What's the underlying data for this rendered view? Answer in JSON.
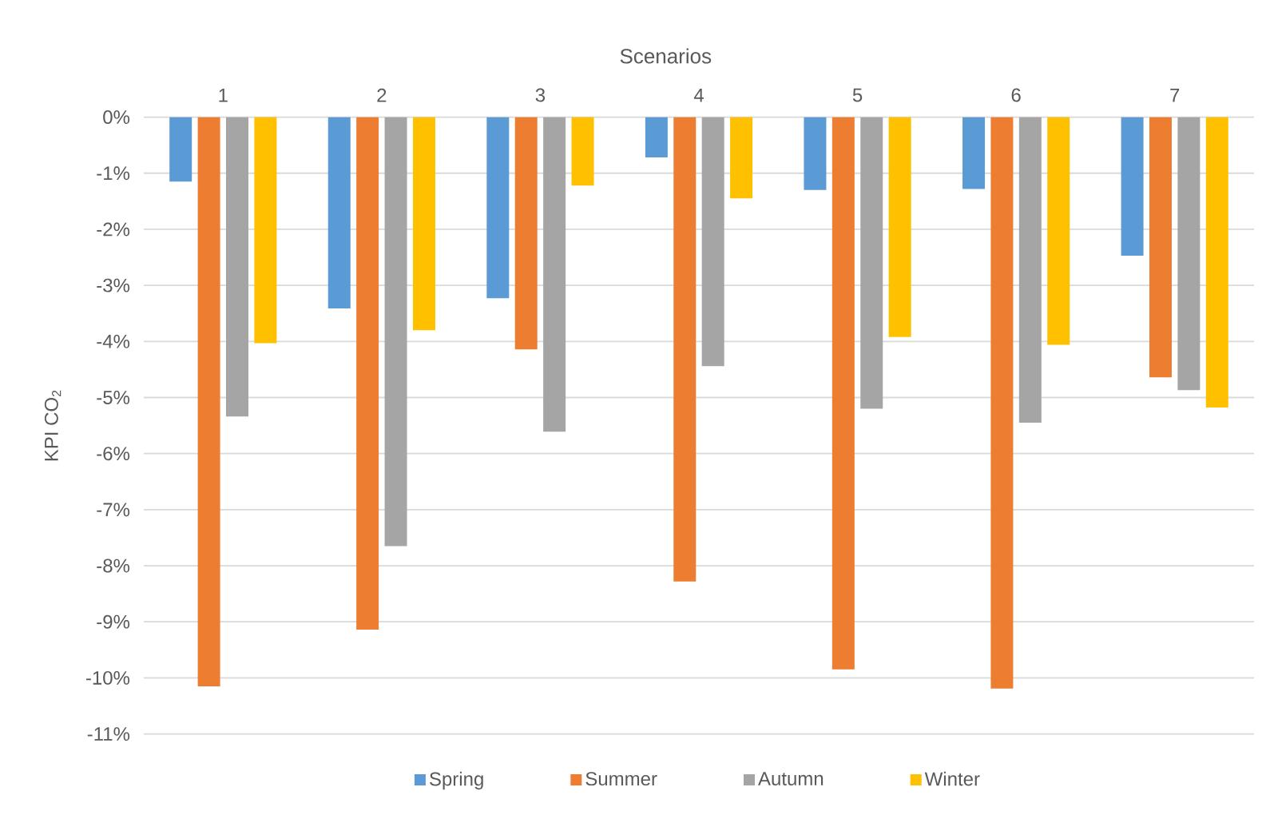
{
  "chart_data": {
    "type": "bar",
    "xlabel": "Scenarios",
    "ylabel": "KPI CO$_{2}$",
    "categories": [
      "1",
      "2",
      "3",
      "4",
      "5",
      "6",
      "7"
    ],
    "series": [
      {
        "name": "Spring",
        "color": "#5b9bd5",
        "values": [
          -1.15,
          -3.41,
          -3.23,
          -0.72,
          -1.3,
          -1.28,
          -2.47
        ]
      },
      {
        "name": "Summer",
        "color": "#ed7d31",
        "values": [
          -10.15,
          -9.14,
          -4.14,
          -8.28,
          -9.85,
          -10.19,
          -4.64
        ]
      },
      {
        "name": "Autumn",
        "color": "#a5a5a5",
        "values": [
          -5.34,
          -7.65,
          -5.61,
          -4.44,
          -5.2,
          -5.45,
          -4.87
        ]
      },
      {
        "name": "Winter",
        "color": "#ffc000",
        "values": [
          -4.03,
          -3.8,
          -1.22,
          -1.45,
          -3.92,
          -4.06,
          -5.18
        ]
      }
    ],
    "ylim": [
      -11,
      0
    ],
    "yticks": [
      {
        "value": 0,
        "label": "0%"
      },
      {
        "value": -1,
        "label": "-1%"
      },
      {
        "value": -2,
        "label": "-2%"
      },
      {
        "value": -3,
        "label": "-3%"
      },
      {
        "value": -4,
        "label": "-4%"
      },
      {
        "value": -5,
        "label": "-5%"
      },
      {
        "value": -6,
        "label": "-6%"
      },
      {
        "value": -7,
        "label": "-7%"
      },
      {
        "value": -8,
        "label": "-8%"
      },
      {
        "value": -9,
        "label": "-9%"
      },
      {
        "value": -10,
        "label": "-10%"
      },
      {
        "value": -11,
        "label": "-11%"
      }
    ],
    "grid": "y",
    "legend": "bottom"
  }
}
